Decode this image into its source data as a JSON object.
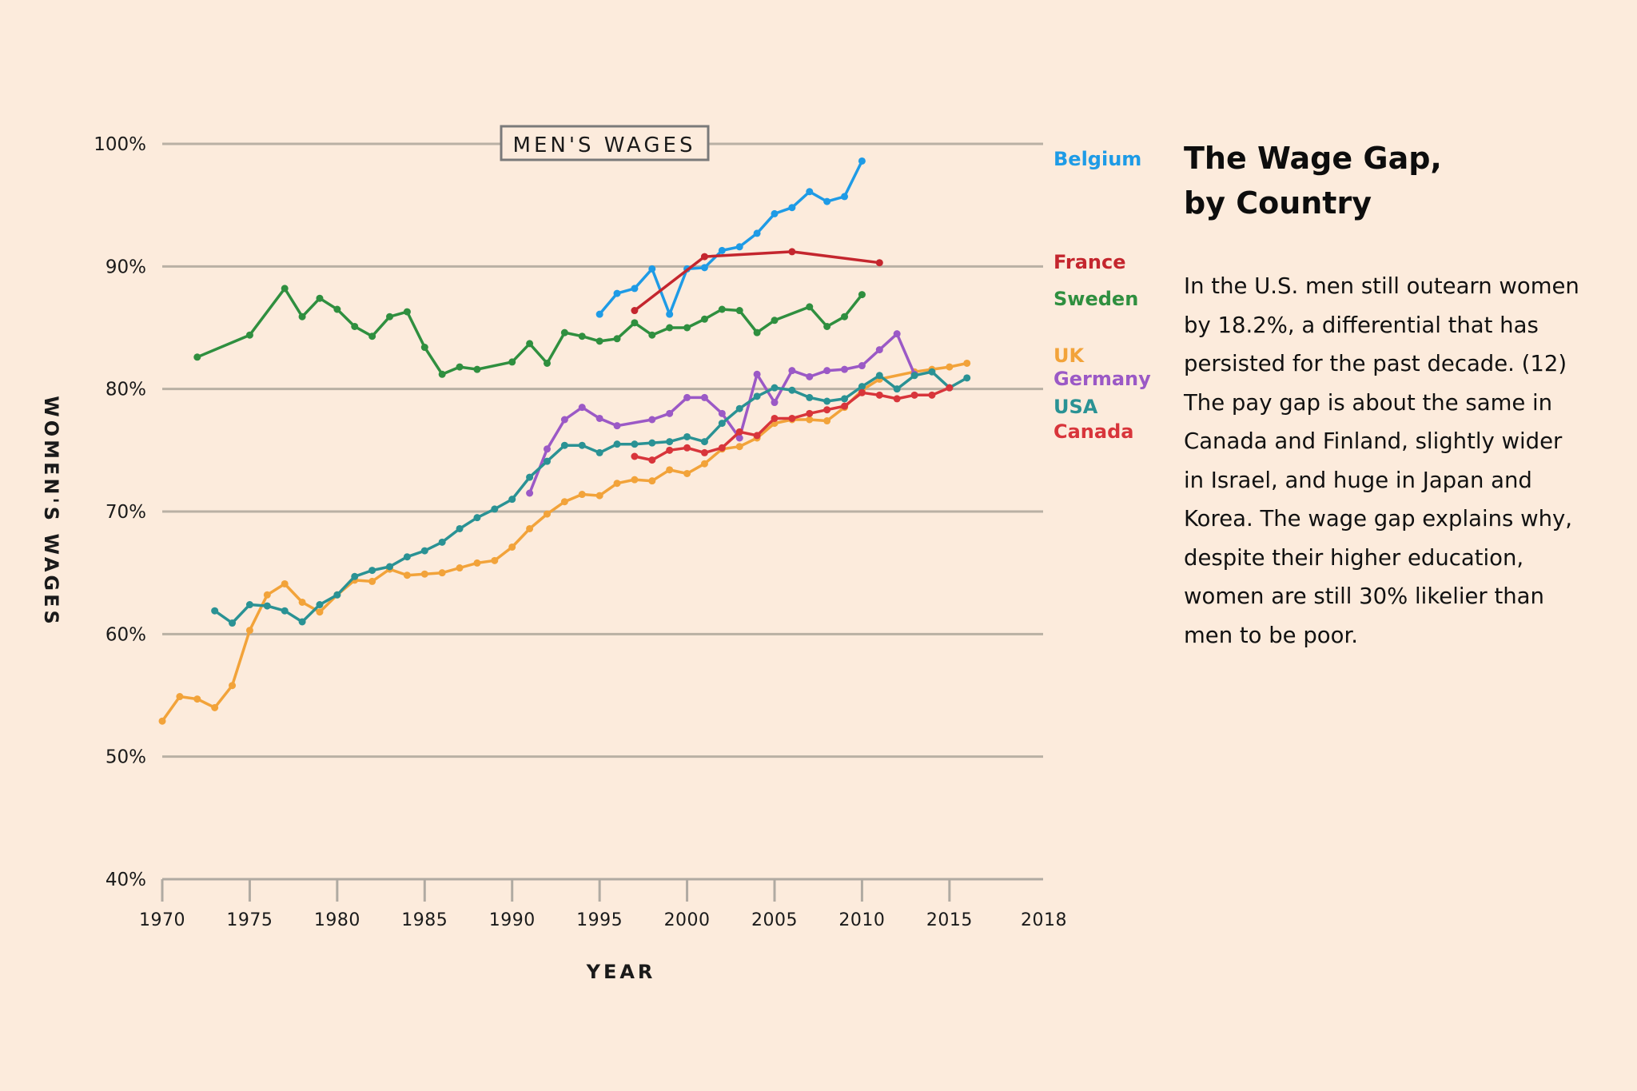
{
  "chart_data": {
    "type": "line",
    "title": "The Wage Gap, by Country",
    "xlabel": "YEAR",
    "ylabel": "WOMEN'S WAGES",
    "xlim": [
      1970,
      2018
    ],
    "ylim": [
      40,
      100
    ],
    "x_ticks": [
      1970,
      1975,
      1980,
      1985,
      1990,
      1995,
      2000,
      2005,
      2010,
      2015,
      2018
    ],
    "x_tick_labels": [
      "1970",
      "1975",
      "1980",
      "1985",
      "1990",
      "1995",
      "2000",
      "2005",
      "2010",
      "2015",
      "2018"
    ],
    "y_ticks": [
      40,
      50,
      60,
      70,
      80,
      90,
      100
    ],
    "y_tick_labels": [
      "40%",
      "50%",
      "60%",
      "70%",
      "80%",
      "90%",
      "100%"
    ],
    "grid": "horizontal",
    "legend": "direct-labels-right",
    "annotation": "MEN'S WAGES",
    "series": [
      {
        "name": "Belgium",
        "color": "#1e9be6",
        "points": [
          [
            1995,
            86.1
          ],
          [
            1996,
            87.8
          ],
          [
            1997,
            88.2
          ],
          [
            1998,
            89.8
          ],
          [
            1999,
            86.1
          ],
          [
            2000,
            89.8
          ],
          [
            2001,
            89.9
          ],
          [
            2002,
            91.3
          ],
          [
            2003,
            91.6
          ],
          [
            2004,
            92.7
          ],
          [
            2005,
            94.3
          ],
          [
            2006,
            94.8
          ],
          [
            2007,
            96.1
          ],
          [
            2008,
            95.3
          ],
          [
            2009,
            95.7
          ],
          [
            2010,
            98.6
          ]
        ]
      },
      {
        "name": "France",
        "color": "#c4262e",
        "points": [
          [
            1997,
            86.4
          ],
          [
            2001,
            90.8
          ],
          [
            2006,
            91.2
          ],
          [
            2011,
            90.3
          ]
        ]
      },
      {
        "name": "Sweden",
        "color": "#2f8f3f",
        "points": [
          [
            1972,
            82.6
          ],
          [
            1975,
            84.4
          ],
          [
            1977,
            88.2
          ],
          [
            1978,
            85.9
          ],
          [
            1979,
            87.4
          ],
          [
            1980,
            86.5
          ],
          [
            1981,
            85.1
          ],
          [
            1982,
            84.3
          ],
          [
            1983,
            85.9
          ],
          [
            1984,
            86.3
          ],
          [
            1985,
            83.4
          ],
          [
            1986,
            81.2
          ],
          [
            1987,
            81.8
          ],
          [
            1988,
            81.6
          ],
          [
            1990,
            82.2
          ],
          [
            1991,
            83.7
          ],
          [
            1992,
            82.1
          ],
          [
            1993,
            84.6
          ],
          [
            1994,
            84.3
          ],
          [
            1995,
            83.9
          ],
          [
            1996,
            84.1
          ],
          [
            1997,
            85.4
          ],
          [
            1998,
            84.4
          ],
          [
            1999,
            85.0
          ],
          [
            2000,
            85.0
          ],
          [
            2001,
            85.7
          ],
          [
            2002,
            86.5
          ],
          [
            2003,
            86.4
          ],
          [
            2004,
            84.6
          ],
          [
            2005,
            85.6
          ],
          [
            2007,
            86.7
          ],
          [
            2008,
            85.1
          ],
          [
            2009,
            85.9
          ],
          [
            2010,
            87.7
          ]
        ]
      },
      {
        "name": "UK",
        "color": "#f2a33a",
        "points": [
          [
            1970,
            52.9
          ],
          [
            1971,
            54.9
          ],
          [
            1972,
            54.7
          ],
          [
            1973,
            54.0
          ],
          [
            1974,
            55.8
          ],
          [
            1975,
            60.3
          ],
          [
            1976,
            63.2
          ],
          [
            1977,
            64.1
          ],
          [
            1978,
            62.6
          ],
          [
            1979,
            61.8
          ],
          [
            1980,
            63.2
          ],
          [
            1981,
            64.4
          ],
          [
            1982,
            64.3
          ],
          [
            1983,
            65.3
          ],
          [
            1984,
            64.8
          ],
          [
            1985,
            64.9
          ],
          [
            1986,
            65.0
          ],
          [
            1987,
            65.4
          ],
          [
            1988,
            65.8
          ],
          [
            1989,
            66.0
          ],
          [
            1990,
            67.1
          ],
          [
            1991,
            68.6
          ],
          [
            1992,
            69.8
          ],
          [
            1993,
            70.8
          ],
          [
            1994,
            71.4
          ],
          [
            1995,
            71.3
          ],
          [
            1996,
            72.3
          ],
          [
            1997,
            72.6
          ],
          [
            1998,
            72.5
          ],
          [
            1999,
            73.4
          ],
          [
            2000,
            73.1
          ],
          [
            2001,
            73.9
          ],
          [
            2002,
            75.1
          ],
          [
            2003,
            75.3
          ],
          [
            2004,
            76.0
          ],
          [
            2005,
            77.2
          ],
          [
            2006,
            77.5
          ],
          [
            2007,
            77.5
          ],
          [
            2008,
            77.4
          ],
          [
            2009,
            78.5
          ],
          [
            2010,
            79.9
          ],
          [
            2011,
            80.8
          ],
          [
            2013,
            81.4
          ],
          [
            2014,
            81.6
          ],
          [
            2015,
            81.8
          ],
          [
            2016,
            82.1
          ]
        ]
      },
      {
        "name": "Germany",
        "color": "#9b59c6",
        "points": [
          [
            1991,
            71.5
          ],
          [
            1992,
            75.1
          ],
          [
            1993,
            77.5
          ],
          [
            1994,
            78.5
          ],
          [
            1995,
            77.6
          ],
          [
            1996,
            77.0
          ],
          [
            1998,
            77.5
          ],
          [
            1999,
            78.0
          ],
          [
            2000,
            79.3
          ],
          [
            2001,
            79.3
          ],
          [
            2002,
            78.0
          ],
          [
            2003,
            76.0
          ],
          [
            2004,
            81.2
          ],
          [
            2005,
            78.9
          ],
          [
            2006,
            81.5
          ],
          [
            2007,
            81.0
          ],
          [
            2008,
            81.5
          ],
          [
            2009,
            81.6
          ],
          [
            2010,
            81.9
          ],
          [
            2011,
            83.2
          ],
          [
            2012,
            84.5
          ],
          [
            2013,
            81.2
          ]
        ]
      },
      {
        "name": "USA",
        "color": "#2a9294",
        "points": [
          [
            1973,
            61.9
          ],
          [
            1974,
            60.9
          ],
          [
            1975,
            62.4
          ],
          [
            1976,
            62.3
          ],
          [
            1977,
            61.9
          ],
          [
            1978,
            61.0
          ],
          [
            1979,
            62.4
          ],
          [
            1980,
            63.2
          ],
          [
            1981,
            64.7
          ],
          [
            1982,
            65.2
          ],
          [
            1983,
            65.5
          ],
          [
            1984,
            66.3
          ],
          [
            1985,
            66.8
          ],
          [
            1986,
            67.5
          ],
          [
            1987,
            68.6
          ],
          [
            1988,
            69.5
          ],
          [
            1989,
            70.2
          ],
          [
            1990,
            71.0
          ],
          [
            1991,
            72.8
          ],
          [
            1992,
            74.1
          ],
          [
            1993,
            75.4
          ],
          [
            1994,
            75.4
          ],
          [
            1995,
            74.8
          ],
          [
            1996,
            75.5
          ],
          [
            1997,
            75.5
          ],
          [
            1998,
            75.6
          ],
          [
            1999,
            75.7
          ],
          [
            2000,
            76.1
          ],
          [
            2001,
            75.7
          ],
          [
            2002,
            77.2
          ],
          [
            2003,
            78.4
          ],
          [
            2004,
            79.4
          ],
          [
            2005,
            80.1
          ],
          [
            2006,
            79.9
          ],
          [
            2007,
            79.3
          ],
          [
            2008,
            79.0
          ],
          [
            2009,
            79.2
          ],
          [
            2010,
            80.2
          ],
          [
            2011,
            81.1
          ],
          [
            2012,
            80.0
          ],
          [
            2013,
            81.1
          ],
          [
            2014,
            81.4
          ],
          [
            2015,
            80.1
          ],
          [
            2016,
            80.9
          ]
        ]
      },
      {
        "name": "Canada",
        "color": "#d8353b",
        "points": [
          [
            1997,
            74.5
          ],
          [
            1998,
            74.2
          ],
          [
            1999,
            75.0
          ],
          [
            2000,
            75.2
          ],
          [
            2001,
            74.8
          ],
          [
            2002,
            75.2
          ],
          [
            2003,
            76.5
          ],
          [
            2004,
            76.2
          ],
          [
            2005,
            77.6
          ],
          [
            2006,
            77.6
          ],
          [
            2007,
            78.0
          ],
          [
            2008,
            78.3
          ],
          [
            2009,
            78.6
          ],
          [
            2010,
            79.7
          ],
          [
            2011,
            79.5
          ],
          [
            2012,
            79.2
          ],
          [
            2013,
            79.5
          ],
          [
            2014,
            79.5
          ],
          [
            2015,
            80.1
          ]
        ]
      }
    ]
  },
  "side": {
    "title_lines": [
      "The Wage Gap,",
      "by Country"
    ],
    "body_lines": [
      "In the U.S. men still outearn women",
      "by 18.2%, a differential that has",
      "persisted for the past decade. (12)",
      "The pay gap is about the same in",
      "Canada and Finland, slightly wider",
      "in Israel, and huge in Japan and",
      "Korea. The wage gap explains why,",
      "despite their higher education,",
      "women are still 30% likelier than",
      "men to be poor."
    ]
  }
}
